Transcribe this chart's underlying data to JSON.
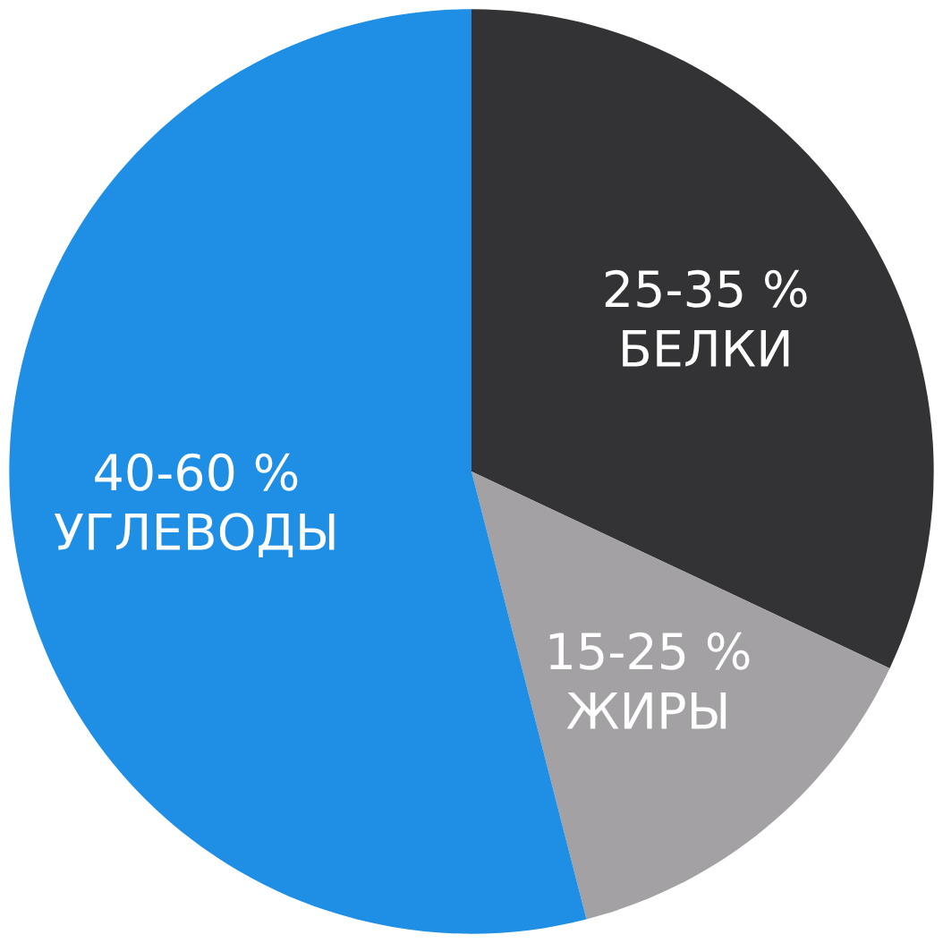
{
  "chart_data": {
    "type": "pie",
    "categories": [
      "25-35 %\nБЕЛКИ",
      "15-25 %\nЖИРЫ",
      "40-60 %\nУГЛЕВОДЫ"
    ],
    "values": [
      32,
      14,
      54
    ],
    "colors": [
      "#333235",
      "#a3a1a4",
      "#1f8fe5"
    ]
  }
}
